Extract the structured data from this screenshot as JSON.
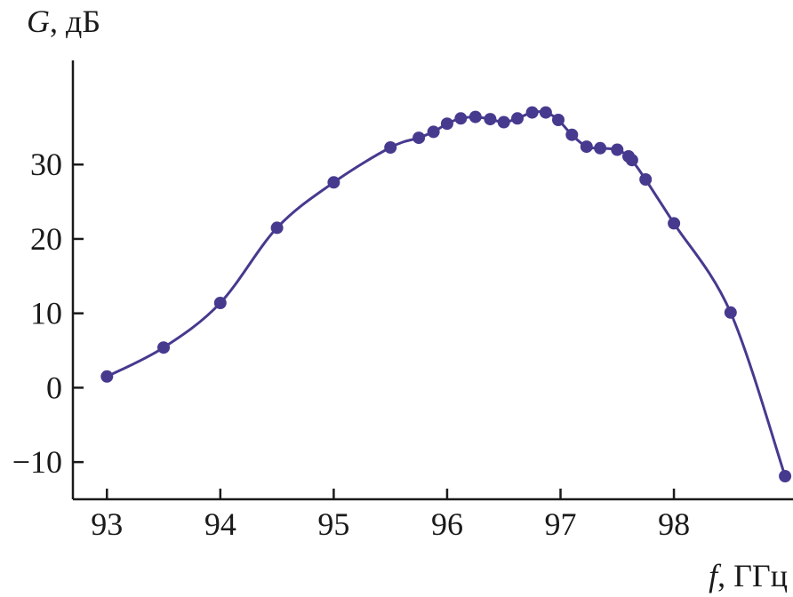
{
  "chart_data": {
    "type": "line",
    "title": "",
    "xlabel": {
      "symbol": "f",
      "unit": ", ГГц"
    },
    "ylabel": {
      "symbol": "G",
      "unit": ", дБ"
    },
    "xlim": [
      92.7,
      99.05
    ],
    "ylim": [
      -15,
      44
    ],
    "x_ticks": [
      93,
      94,
      95,
      96,
      97,
      98
    ],
    "x_tick_labels": [
      "93",
      "94",
      "95",
      "96",
      "97",
      "98"
    ],
    "y_ticks": [
      -10,
      0,
      10,
      20,
      30
    ],
    "y_tick_labels": [
      "−10",
      "0",
      "10",
      "20",
      "30"
    ],
    "grid": false,
    "legend": "none",
    "color": "#463a8f",
    "series": [
      {
        "x": [
          93.0,
          93.5,
          94.0,
          94.5,
          95.0,
          95.5,
          95.75,
          95.88,
          96.0,
          96.12,
          96.25,
          96.38,
          96.5,
          96.62,
          96.75,
          96.87,
          96.98,
          97.1,
          97.23,
          97.35,
          97.5,
          97.6,
          97.63,
          97.75,
          98.0,
          98.5,
          98.98
        ],
        "y": [
          1.5,
          5.4,
          11.4,
          21.5,
          27.6,
          32.3,
          33.6,
          34.4,
          35.5,
          36.2,
          36.4,
          36.1,
          35.7,
          36.2,
          37.0,
          37.0,
          36.0,
          34.0,
          32.4,
          32.2,
          32.0,
          31.1,
          30.6,
          28.0,
          22.1,
          10.1,
          -11.9
        ]
      }
    ]
  }
}
